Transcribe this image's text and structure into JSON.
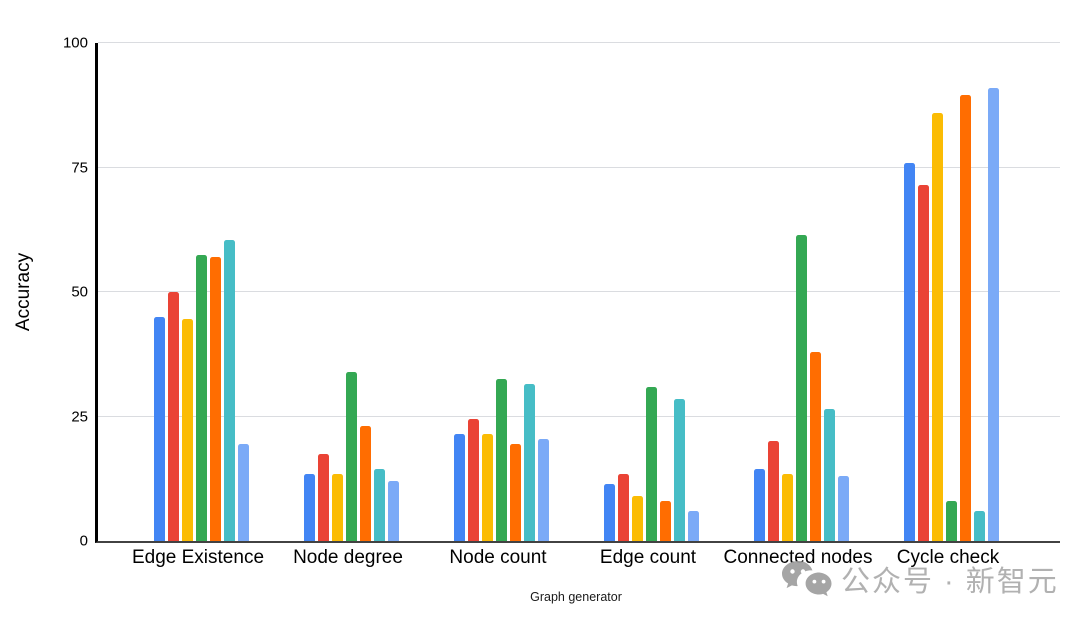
{
  "chart_data": {
    "type": "bar",
    "title": "",
    "xlabel": "Graph generator",
    "ylabel": "Accuracy",
    "ylim": [
      0,
      100
    ],
    "yticks": [
      0,
      25,
      50,
      75,
      100
    ],
    "grid": true,
    "legend_position": "none",
    "categories": [
      "Edge Existence",
      "Node degree",
      "Node count",
      "Edge count",
      "Connected nodes",
      "Cycle check"
    ],
    "series": [
      {
        "name": "series-blue",
        "color": "#4285F4",
        "values": [
          45,
          13.5,
          21.5,
          11.5,
          14.5,
          76
        ]
      },
      {
        "name": "series-red",
        "color": "#EA4335",
        "values": [
          50,
          17.5,
          24.5,
          13.5,
          20,
          71.5
        ]
      },
      {
        "name": "series-yellow",
        "color": "#FBBC04",
        "values": [
          44.5,
          13.5,
          21.5,
          9,
          13.5,
          86
        ]
      },
      {
        "name": "series-green",
        "color": "#34A853",
        "values": [
          57.5,
          34,
          32.5,
          31,
          61.5,
          8
        ]
      },
      {
        "name": "series-orange",
        "color": "#FF6D01",
        "values": [
          57,
          23,
          19.5,
          8,
          38,
          89.5
        ]
      },
      {
        "name": "series-teal",
        "color": "#46BDC6",
        "values": [
          60.5,
          14.5,
          31.5,
          28.5,
          26.5,
          6
        ]
      },
      {
        "name": "series-light-blue",
        "color": "#7BAAF7",
        "values": [
          19.5,
          12,
          20.5,
          6,
          13,
          91
        ]
      }
    ],
    "axis_colors": {
      "gridline": "#dadce0",
      "y_axis": "#000000",
      "x_baseline": "#424242"
    }
  },
  "watermark": {
    "text": "公众号 · 新智元",
    "icon": "wechat-icon",
    "color": "#ababab"
  }
}
